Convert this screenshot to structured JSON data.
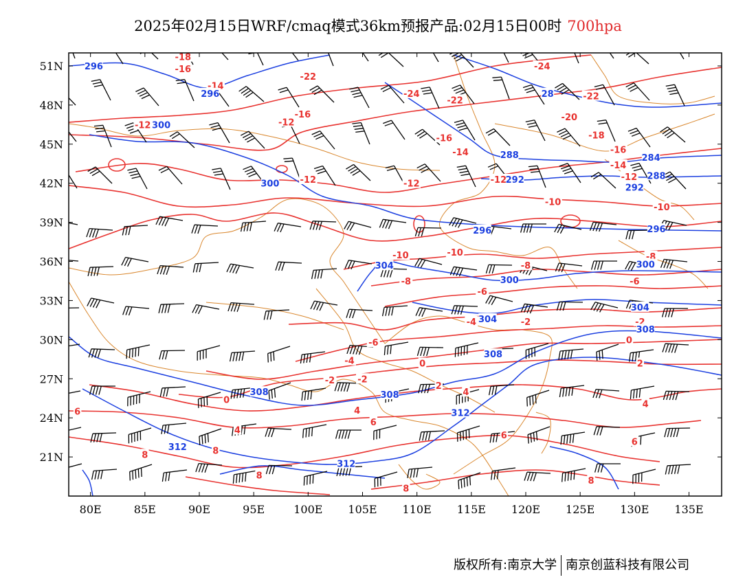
{
  "title": {
    "text": "2025年02月15日WRF/cmaq模式36km预报产品:02月15日00时",
    "level": "700hpa",
    "level_color": "#e0282a"
  },
  "footer": {
    "left": "版权所有:南京大学",
    "right": "南京创蓝科技有限公司"
  },
  "map": {
    "lon_range": [
      78,
      138
    ],
    "lat_range": [
      18,
      52
    ],
    "lon_ticks": [
      80,
      85,
      90,
      95,
      100,
      105,
      110,
      115,
      120,
      125,
      130,
      135
    ],
    "lon_tick_labels": [
      "80E",
      "85E",
      "90E",
      "95E",
      "100E",
      "105E",
      "110E",
      "115E",
      "120E",
      "125E",
      "130E",
      "135E"
    ],
    "lat_ticks": [
      21,
      24,
      27,
      30,
      33,
      36,
      39,
      42,
      45,
      48,
      51
    ],
    "lat_tick_labels": [
      "21N",
      "24N",
      "27N",
      "30N",
      "33N",
      "36N",
      "39N",
      "42N",
      "45N",
      "48N",
      "51N"
    ],
    "colors": {
      "temperature": "#e8322f",
      "height": "#1b3fe0",
      "boundary": "#d9862c",
      "wind": "#000000"
    },
    "temperature_labels": [
      {
        "lon": 88.5,
        "lat": 51.7,
        "text": "-18"
      },
      {
        "lon": 88.5,
        "lat": 50.8,
        "text": "-16"
      },
      {
        "lon": 91.5,
        "lat": 49.5,
        "text": "-14"
      },
      {
        "lon": 100.0,
        "lat": 50.2,
        "text": "-22"
      },
      {
        "lon": 109.5,
        "lat": 48.9,
        "text": "-24"
      },
      {
        "lon": 113.5,
        "lat": 48.4,
        "text": "-22"
      },
      {
        "lon": 121.5,
        "lat": 51.0,
        "text": "-24"
      },
      {
        "lon": 126.0,
        "lat": 48.7,
        "text": "-22"
      },
      {
        "lon": 124.0,
        "lat": 47.1,
        "text": "-20"
      },
      {
        "lon": 126.5,
        "lat": 45.7,
        "text": "-18"
      },
      {
        "lon": 128.5,
        "lat": 44.6,
        "text": "-16"
      },
      {
        "lon": 128.5,
        "lat": 43.4,
        "text": "-14"
      },
      {
        "lon": 129.5,
        "lat": 42.5,
        "text": "-12"
      },
      {
        "lon": 84.8,
        "lat": 46.5,
        "text": "-12"
      },
      {
        "lon": 98.0,
        "lat": 46.7,
        "text": "-12"
      },
      {
        "lon": 99.5,
        "lat": 47.3,
        "text": "-16"
      },
      {
        "lon": 100.0,
        "lat": 42.3,
        "text": "-12"
      },
      {
        "lon": 109.5,
        "lat": 42.0,
        "text": "-12"
      },
      {
        "lon": 112.5,
        "lat": 45.5,
        "text": "-16"
      },
      {
        "lon": 114.0,
        "lat": 44.4,
        "text": "-14"
      },
      {
        "lon": 117.5,
        "lat": 42.3,
        "text": "-12"
      },
      {
        "lon": 122.5,
        "lat": 40.6,
        "text": "-10"
      },
      {
        "lon": 132.5,
        "lat": 40.2,
        "text": "-10"
      },
      {
        "lon": 108.5,
        "lat": 36.5,
        "text": "-10"
      },
      {
        "lon": 113.5,
        "lat": 36.7,
        "text": "-10"
      },
      {
        "lon": 109.0,
        "lat": 34.5,
        "text": "-8"
      },
      {
        "lon": 120.0,
        "lat": 35.7,
        "text": "-8"
      },
      {
        "lon": 131.5,
        "lat": 36.4,
        "text": "-8"
      },
      {
        "lon": 116.0,
        "lat": 33.7,
        "text": "-6"
      },
      {
        "lon": 130.0,
        "lat": 34.5,
        "text": "-6"
      },
      {
        "lon": 115.0,
        "lat": 31.4,
        "text": "-4"
      },
      {
        "lon": 120.0,
        "lat": 31.4,
        "text": "-2"
      },
      {
        "lon": 130.5,
        "lat": 31.4,
        "text": "-2"
      },
      {
        "lon": 106.0,
        "lat": 29.8,
        "text": "-6"
      },
      {
        "lon": 103.8,
        "lat": 28.4,
        "text": "-4"
      },
      {
        "lon": 102.0,
        "lat": 26.9,
        "text": "-2"
      },
      {
        "lon": 105.0,
        "lat": 27.0,
        "text": "-2"
      },
      {
        "lon": 110.5,
        "lat": 28.2,
        "text": "0"
      },
      {
        "lon": 129.5,
        "lat": 30.0,
        "text": "0"
      },
      {
        "lon": 92.5,
        "lat": 25.4,
        "text": "0"
      },
      {
        "lon": 112.0,
        "lat": 26.5,
        "text": "2"
      },
      {
        "lon": 130.5,
        "lat": 28.2,
        "text": "2"
      },
      {
        "lon": 104.5,
        "lat": 24.6,
        "text": "4"
      },
      {
        "lon": 114.5,
        "lat": 26.0,
        "text": "4"
      },
      {
        "lon": 131.0,
        "lat": 25.1,
        "text": "4"
      },
      {
        "lon": 93.5,
        "lat": 23.1,
        "text": "4"
      },
      {
        "lon": 78.8,
        "lat": 24.5,
        "text": "6"
      },
      {
        "lon": 106.0,
        "lat": 23.7,
        "text": "6"
      },
      {
        "lon": 118.0,
        "lat": 22.7,
        "text": "6"
      },
      {
        "lon": 130.0,
        "lat": 22.2,
        "text": "6"
      },
      {
        "lon": 85.0,
        "lat": 21.2,
        "text": "8"
      },
      {
        "lon": 91.5,
        "lat": 21.5,
        "text": "8"
      },
      {
        "lon": 95.5,
        "lat": 19.6,
        "text": "8"
      },
      {
        "lon": 109.0,
        "lat": 18.6,
        "text": "8"
      },
      {
        "lon": 126.0,
        "lat": 19.2,
        "text": "8"
      }
    ],
    "height_labels": [
      {
        "lon": 80.3,
        "lat": 51.0,
        "text": "296"
      },
      {
        "lon": 91.0,
        "lat": 48.9,
        "text": "296"
      },
      {
        "lon": 86.5,
        "lat": 46.5,
        "text": "300"
      },
      {
        "lon": 122.0,
        "lat": 48.9,
        "text": "28"
      },
      {
        "lon": 118.5,
        "lat": 44.2,
        "text": "288"
      },
      {
        "lon": 131.5,
        "lat": 44.0,
        "text": "284"
      },
      {
        "lon": 132.0,
        "lat": 42.6,
        "text": "288"
      },
      {
        "lon": 130.0,
        "lat": 41.7,
        "text": "292"
      },
      {
        "lon": 119.0,
        "lat": 42.3,
        "text": "292"
      },
      {
        "lon": 96.5,
        "lat": 42.0,
        "text": "300"
      },
      {
        "lon": 116.0,
        "lat": 38.4,
        "text": "296"
      },
      {
        "lon": 132.0,
        "lat": 38.5,
        "text": "296"
      },
      {
        "lon": 118.5,
        "lat": 34.6,
        "text": "300"
      },
      {
        "lon": 131.0,
        "lat": 35.8,
        "text": "300"
      },
      {
        "lon": 107.0,
        "lat": 35.7,
        "text": "304"
      },
      {
        "lon": 116.5,
        "lat": 31.6,
        "text": "304"
      },
      {
        "lon": 130.5,
        "lat": 32.5,
        "text": "304"
      },
      {
        "lon": 131.0,
        "lat": 30.8,
        "text": "308"
      },
      {
        "lon": 117.0,
        "lat": 28.9,
        "text": "308"
      },
      {
        "lon": 95.5,
        "lat": 26.0,
        "text": "308"
      },
      {
        "lon": 107.5,
        "lat": 25.8,
        "text": "308"
      },
      {
        "lon": 114.0,
        "lat": 24.4,
        "text": "312"
      },
      {
        "lon": 88.0,
        "lat": 21.8,
        "text": "312"
      },
      {
        "lon": 103.5,
        "lat": 20.5,
        "text": "312"
      }
    ]
  }
}
